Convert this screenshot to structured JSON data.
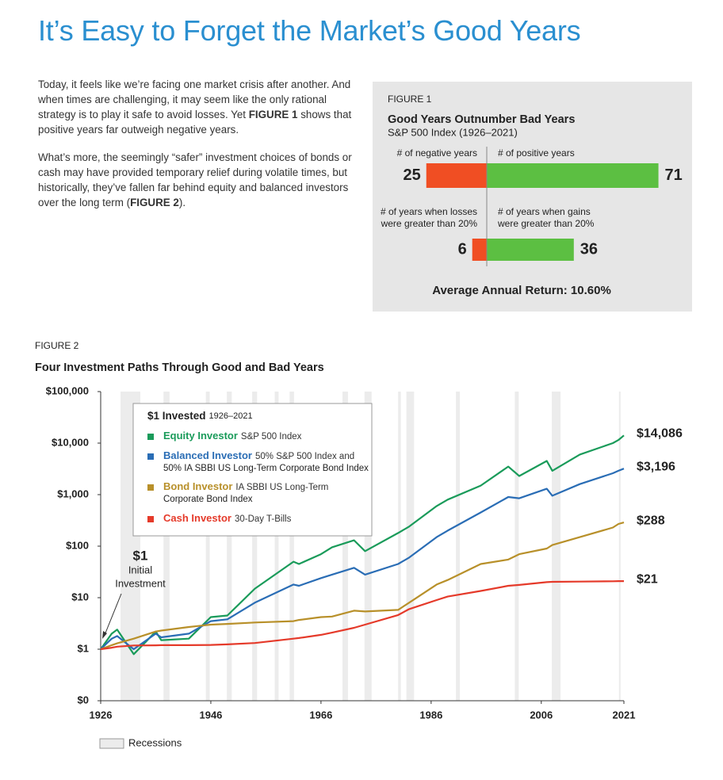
{
  "title": "It’s Easy to Forget the Market’s Good Years",
  "paragraphs": [
    [
      "Today, it feels like we’re facing one market crisis after another. And when times are challenging, it may seem like the only rational strategy is to play it safe to avoid losses. Yet ",
      "FIGURE 1",
      " shows that positive years far outweigh negative years."
    ],
    [
      "What’s more, the seemingly “safer” investment choices of bonds or cash may have provided temporary relief during volatile times, but historically, they’ve fallen far behind equity and balanced investors over the long term (",
      "FIGURE 2",
      ")."
    ]
  ],
  "chart_data": [
    {
      "type": "diverging-bar",
      "label": "FIGURE 1",
      "title": "Good Years Outnumber Bad Years",
      "subtitle": "S&P 500 Index (1926–2021)",
      "left_color": "#f04e23",
      "right_color": "#5cbf42",
      "groups": [
        {
          "left_label": [
            "# of negative years"
          ],
          "right_label": [
            "# of positive years"
          ],
          "values": [
            25,
            71
          ]
        },
        {
          "left_label": [
            "# of years when losses",
            "were greater than 20%"
          ],
          "right_label": [
            "# of years when gains",
            "were greater than 20%"
          ],
          "values": [
            6,
            36
          ]
        }
      ],
      "footer": "Average Annual Return: 10.60%"
    },
    {
      "type": "line",
      "label": "FIGURE 2",
      "title": "Four Investment Paths Through Good and Bad Years",
      "log_y": true,
      "xlim": [
        1926,
        2021
      ],
      "xticks": [
        1926,
        1946,
        1966,
        1986,
        2006,
        2021
      ],
      "ylim": [
        0.1,
        100000
      ],
      "yticks": [
        {
          "value": 0.1,
          "label": "$0"
        },
        {
          "value": 1,
          "label": "$1"
        },
        {
          "value": 10,
          "label": "$10"
        },
        {
          "value": 100,
          "label": "$100"
        },
        {
          "value": 1000,
          "label": "$1,000"
        },
        {
          "value": 10000,
          "label": "$10,000"
        },
        {
          "value": 100000,
          "label": "$100,000"
        }
      ],
      "legend_title": "$1 Invested",
      "legend_period": "1926–2021",
      "annotation": [
        "$1",
        "Initial",
        "Investment"
      ],
      "recessions_label": "Recessions",
      "recessions": [
        [
          1929.6,
          1933.2
        ],
        [
          1937.4,
          1938.5
        ],
        [
          1945.1,
          1945.8
        ],
        [
          1948.9,
          1949.8
        ],
        [
          1953.5,
          1954.4
        ],
        [
          1957.6,
          1958.3
        ],
        [
          1960.3,
          1961.1
        ],
        [
          1969.9,
          1970.9
        ],
        [
          1973.9,
          1975.2
        ],
        [
          1980,
          1980.5
        ],
        [
          1981.5,
          1982.9
        ],
        [
          1990.5,
          1991.2
        ],
        [
          2001.2,
          2001.9
        ],
        [
          2007.9,
          2009.5
        ],
        [
          2020.1,
          2020.4
        ]
      ],
      "x": [
        1926,
        1928,
        1929,
        1932,
        1936,
        1937,
        1942,
        1946,
        1949,
        1954,
        1961,
        1962,
        1966,
        1968,
        1972,
        1974,
        1980,
        1982,
        1987,
        1989,
        1995,
        2000,
        2002,
        2007,
        2008,
        2013,
        2019,
        2020,
        2021
      ],
      "series": [
        {
          "name": "Equity Investor",
          "description": [
            "S&P 500 Index"
          ],
          "color": "#1a9b5a",
          "values": [
            1,
            2.0,
            2.4,
            0.8,
            2.2,
            1.5,
            1.6,
            4.2,
            4.5,
            15,
            50,
            45,
            70,
            95,
            130,
            80,
            180,
            240,
            600,
            800,
            1500,
            3500,
            2300,
            4500,
            2900,
            6000,
            10000,
            11500,
            14086
          ],
          "value_labels": [
            null,
            null,
            null,
            null,
            null,
            null,
            null,
            null,
            null,
            null,
            null,
            null,
            null,
            null,
            null,
            null,
            null,
            null,
            null,
            null,
            null,
            null,
            null,
            null,
            null,
            null,
            null,
            null,
            "$14,086"
          ]
        },
        {
          "name": "Balanced Investor",
          "description": [
            "50% S&P 500 Index and",
            "50% IA SBBI US Long-Term Corporate Bond Index"
          ],
          "color": "#2a6db5",
          "values": [
            1,
            1.6,
            1.8,
            1.0,
            2.0,
            1.7,
            2.0,
            3.5,
            3.8,
            8,
            18,
            17,
            24,
            28,
            38,
            28,
            45,
            60,
            150,
            200,
            450,
            900,
            850,
            1300,
            950,
            1600,
            2600,
            2900,
            3196
          ],
          "value_labels": [
            null,
            null,
            null,
            null,
            null,
            null,
            null,
            null,
            null,
            null,
            null,
            null,
            null,
            null,
            null,
            null,
            null,
            null,
            null,
            null,
            null,
            null,
            null,
            null,
            null,
            null,
            null,
            null,
            "$3,196"
          ]
        },
        {
          "name": "Bond Investor",
          "description": [
            "IA SBBI US Long-Term",
            "Corporate Bond Index"
          ],
          "color": "#b8902a",
          "values": [
            1,
            1.2,
            1.3,
            1.6,
            2.2,
            2.3,
            2.7,
            3.0,
            3.1,
            3.3,
            3.5,
            3.7,
            4.2,
            4.3,
            5.6,
            5.4,
            5.8,
            8,
            18,
            22,
            45,
            55,
            70,
            90,
            105,
            150,
            230,
            270,
            288
          ],
          "value_labels": [
            null,
            null,
            null,
            null,
            null,
            null,
            null,
            null,
            null,
            null,
            null,
            null,
            null,
            null,
            null,
            null,
            null,
            null,
            null,
            null,
            null,
            null,
            null,
            null,
            null,
            null,
            null,
            null,
            "$288"
          ]
        },
        {
          "name": "Cash Investor",
          "description": [
            "30-Day T-Bills"
          ],
          "color": "#e53a2a",
          "values": [
            1,
            1.07,
            1.12,
            1.18,
            1.19,
            1.2,
            1.2,
            1.21,
            1.24,
            1.32,
            1.6,
            1.65,
            1.9,
            2.1,
            2.6,
            3.0,
            4.6,
            6,
            9,
            10.5,
            13.5,
            17,
            17.7,
            20,
            20.3,
            20.5,
            20.8,
            21,
            21
          ],
          "value_labels": [
            null,
            null,
            null,
            null,
            null,
            null,
            null,
            null,
            null,
            null,
            null,
            null,
            null,
            null,
            null,
            null,
            null,
            null,
            null,
            null,
            null,
            null,
            null,
            null,
            null,
            null,
            null,
            null,
            "$21"
          ]
        }
      ]
    }
  ]
}
